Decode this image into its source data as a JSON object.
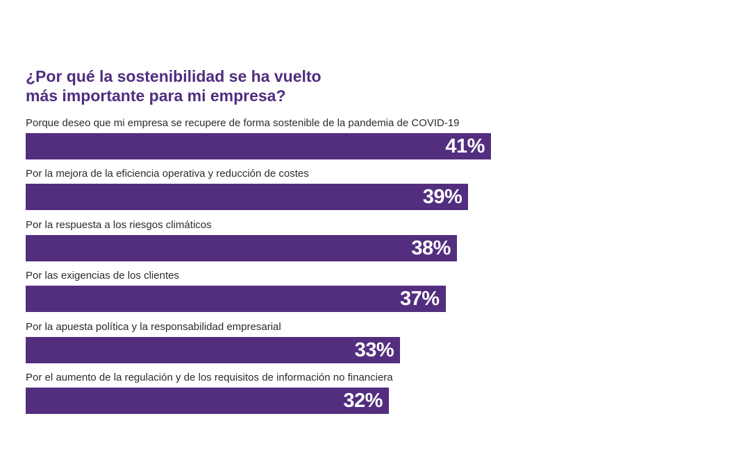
{
  "chart_data": {
    "type": "bar",
    "orientation": "horizontal",
    "title_lines": [
      "¿Por qué la sostenibilidad se ha vuelto",
      "más importante para mi empresa?"
    ],
    "categories": [
      "Porque deseo que mi empresa se recupere de forma sostenible de la pandemia de COVID-19",
      "Por la mejora de la eficiencia operativa y reducción de costes",
      "Por la respuesta a los riesgos climáticos",
      "Por las exigencias de los clientes",
      "Por la apuesta política y la responsabilidad empresarial",
      "Por el aumento de la regulación y de los requisitos de información no financiera"
    ],
    "values": [
      41,
      39,
      38,
      37,
      33,
      32
    ],
    "value_labels": [
      "41%",
      "39%",
      "38%",
      "37%",
      "33%",
      "32%"
    ],
    "unit": "%",
    "grid": false,
    "legend": "none",
    "colors": {
      "bar": "#532e7f",
      "title": "#4f2d7f",
      "label": "#2b2b2b",
      "value_text": "#ffffff"
    }
  }
}
